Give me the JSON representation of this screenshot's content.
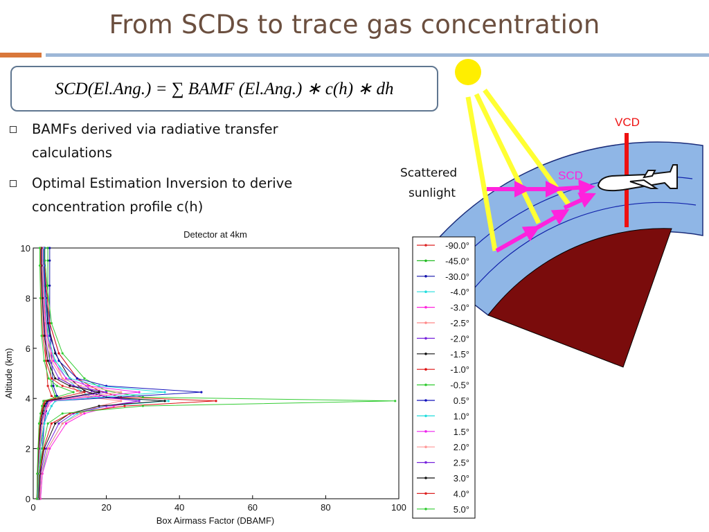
{
  "slide": {
    "title": "From SCDs to trace gas concentration",
    "formula": "SCD(El.Ang.) = ∑ BAMF (El.Ang.) ∗ c(h) ∗ dh",
    "bullets": [
      "BAMFs derived via radiative transfer calculations",
      "Optimal Estimation Inversion to derive concentration profile c(h)"
    ]
  },
  "diagram": {
    "vcd_label": "VCD",
    "scd_label": "SCD",
    "sunlight_label_line1": "Scattered",
    "sunlight_label_line2": "sunlight",
    "colors": {
      "sun": "#ffee00",
      "ray": "#ffff33",
      "arrow": "#ff22dd",
      "vcd": "#ee1111",
      "atmosphere": "#8fb6e6",
      "earth": "#7a0c0c"
    }
  },
  "chart_data": {
    "type": "line",
    "title": "Detector at 4km",
    "xlabel": "Box Airmass Factor (DBAMF)",
    "ylabel": "Altitude (km)",
    "xlim": [
      0,
      100
    ],
    "ylim": [
      0,
      10
    ],
    "x_ticks": [
      0,
      20,
      40,
      60,
      80,
      100
    ],
    "y_ticks": [
      0,
      2,
      4,
      6,
      8,
      10
    ],
    "grid": false,
    "legend_position": "right",
    "series": [
      {
        "name": "-90.0°",
        "color": "#dd2222",
        "x": [
          1,
          1.2,
          1.5,
          2,
          2.5,
          3,
          3.2,
          6,
          5,
          4,
          3.5,
          3.2,
          3,
          3,
          3
        ],
        "y": [
          0,
          1,
          2,
          3,
          3.5,
          3.8,
          3.9,
          4,
          4.1,
          4.5,
          5.5,
          7,
          8.5,
          9.5,
          10
        ]
      },
      {
        "name": "-45.0°",
        "color": "#22bb22",
        "x": [
          1.5,
          1.8,
          2,
          2.5,
          3,
          3.5,
          3.8,
          7,
          6,
          5,
          4.5,
          4,
          4,
          4,
          4
        ],
        "y": [
          0,
          1,
          2,
          3,
          3.5,
          3.8,
          3.9,
          4,
          4.1,
          4.5,
          5.5,
          7,
          8.5,
          9.5,
          10
        ]
      },
      {
        "name": "-30.0°",
        "color": "#1111aa",
        "x": [
          1.8,
          2,
          2.5,
          3,
          3.5,
          3.8,
          4,
          7.5,
          6.5,
          5.5,
          5,
          4.5,
          4.5,
          4.5,
          4.5
        ],
        "y": [
          0,
          1,
          2,
          3,
          3.5,
          3.8,
          3.9,
          4,
          4.1,
          4.5,
          5.5,
          7,
          8.5,
          9.5,
          10
        ]
      },
      {
        "name": "-4.0°",
        "color": "#22dddd",
        "x": [
          2,
          2.5,
          4,
          8,
          12,
          20,
          37,
          16,
          13,
          9,
          5,
          3.5,
          3,
          2.5,
          2.5
        ],
        "y": [
          0,
          1,
          2,
          3,
          3.4,
          3.7,
          3.9,
          4.05,
          4.3,
          4.8,
          5.8,
          7,
          8.5,
          9.5,
          10
        ]
      },
      {
        "name": "-3.0°",
        "color": "#ff22dd",
        "x": [
          2,
          2.5,
          4.5,
          9,
          14,
          22,
          29,
          18,
          14,
          10,
          6,
          4,
          3.2,
          2.8,
          2.8
        ],
        "y": [
          0,
          1,
          2,
          3,
          3.4,
          3.7,
          3.9,
          4.05,
          4.3,
          4.8,
          5.8,
          7,
          8.5,
          9.5,
          10
        ]
      },
      {
        "name": "-2.5°",
        "color": "#ff8888",
        "x": [
          1.8,
          2.2,
          4,
          8,
          13,
          18,
          24,
          15,
          12,
          8,
          5,
          3.5,
          3,
          2.6,
          2.6
        ],
        "y": [
          0,
          1,
          2,
          3,
          3.4,
          3.7,
          3.9,
          4.05,
          4.3,
          4.8,
          5.8,
          7,
          8.5,
          9.5,
          10
        ]
      },
      {
        "name": "-2.0°",
        "color": "#7722dd",
        "x": [
          1.6,
          2,
          3.5,
          7,
          11,
          20,
          29,
          20,
          16,
          12,
          7,
          4.5,
          3.5,
          3,
          3
        ],
        "y": [
          0,
          1,
          2,
          3,
          3.4,
          3.7,
          3.9,
          4.05,
          4.3,
          4.8,
          5.8,
          7,
          8.5,
          9.5,
          10
        ]
      },
      {
        "name": "-1.5°",
        "color": "#111111",
        "x": [
          1.5,
          1.8,
          3,
          6,
          10,
          18,
          36,
          20,
          14,
          10,
          6,
          4,
          3.2,
          2.8,
          2.8
        ],
        "y": [
          0,
          1,
          2,
          3,
          3.4,
          3.7,
          3.9,
          4.05,
          4.3,
          4.8,
          5.8,
          7,
          8.5,
          9.5,
          10
        ]
      },
      {
        "name": "-1.0°",
        "color": "#dd1111",
        "x": [
          1.4,
          1.7,
          2.8,
          5,
          10,
          25,
          50,
          24,
          18,
          12,
          7,
          4.5,
          3.5,
          3,
          3
        ],
        "y": [
          0,
          1,
          2,
          3,
          3.4,
          3.7,
          3.9,
          4.05,
          4.3,
          4.8,
          5.8,
          7,
          8.5,
          9.5,
          10
        ]
      },
      {
        "name": "-0.5°",
        "color": "#33cc33",
        "x": [
          1.3,
          1.6,
          2.5,
          4,
          8,
          30,
          99,
          30,
          20,
          14,
          8,
          5,
          3.8,
          3.2,
          3.2
        ],
        "y": [
          0,
          1,
          2,
          3,
          3.4,
          3.7,
          3.9,
          4.05,
          4.3,
          4.8,
          5.8,
          7,
          8.5,
          9.5,
          10
        ]
      },
      {
        "name": "0.5°",
        "color": "#1111bb",
        "x": [
          1.2,
          1.4,
          2,
          3,
          4,
          5,
          6,
          46,
          20,
          12,
          7,
          4.5,
          3.5,
          3,
          3
        ],
        "y": [
          0,
          1,
          2,
          3,
          3.4,
          3.7,
          3.9,
          4.25,
          4.5,
          4.8,
          5.5,
          6.5,
          8,
          9.3,
          10
        ]
      },
      {
        "name": "1.0°",
        "color": "#22dddd",
        "x": [
          1.2,
          1.4,
          2,
          3,
          4,
          5,
          6,
          36,
          18,
          10,
          6,
          4,
          3.2,
          2.8,
          2.8
        ],
        "y": [
          0,
          1,
          2,
          3,
          3.4,
          3.7,
          3.9,
          4.25,
          4.5,
          4.8,
          5.5,
          6.5,
          8,
          9.3,
          10
        ]
      },
      {
        "name": "1.5°",
        "color": "#ee22ee",
        "x": [
          1.1,
          1.3,
          1.8,
          2.5,
          3.2,
          4,
          5,
          29,
          15,
          9,
          5.5,
          3.8,
          3,
          2.6,
          2.6
        ],
        "y": [
          0,
          1,
          2,
          3,
          3.4,
          3.7,
          3.9,
          4.25,
          4.5,
          4.8,
          5.5,
          6.5,
          8,
          9.3,
          10
        ]
      },
      {
        "name": "2.0°",
        "color": "#ff9999",
        "x": [
          1.1,
          1.3,
          1.8,
          2.5,
          3,
          3.8,
          4.5,
          24,
          13,
          8,
          5,
          3.5,
          2.8,
          2.5,
          2.5
        ],
        "y": [
          0,
          1,
          2,
          3,
          3.4,
          3.7,
          3.9,
          4.25,
          4.5,
          4.8,
          5.5,
          6.5,
          8,
          9.3,
          10
        ]
      },
      {
        "name": "2.5°",
        "color": "#7722dd",
        "x": [
          1.1,
          1.2,
          1.6,
          2.2,
          2.8,
          3.5,
          4.2,
          20,
          11,
          7,
          4.5,
          3.2,
          2.6,
          2.3,
          2.3
        ],
        "y": [
          0,
          1,
          2,
          3,
          3.4,
          3.7,
          3.9,
          4.25,
          4.5,
          4.8,
          5.5,
          6.5,
          8,
          9.3,
          10
        ]
      },
      {
        "name": "3.0°",
        "color": "#111111",
        "x": [
          1,
          1.2,
          1.5,
          2,
          2.5,
          3,
          3.8,
          18,
          10,
          6,
          4,
          3,
          2.5,
          2.2,
          2.2
        ],
        "y": [
          0,
          1,
          2,
          3,
          3.4,
          3.7,
          3.9,
          4.25,
          4.5,
          4.8,
          5.5,
          6.5,
          8,
          9.3,
          10
        ]
      },
      {
        "name": "4.0°",
        "color": "#dd2222",
        "x": [
          1,
          1.1,
          1.4,
          1.8,
          2.2,
          2.6,
          3.2,
          14,
          8,
          5,
          3.5,
          2.6,
          2.2,
          2,
          2
        ],
        "y": [
          0,
          1,
          2,
          3,
          3.4,
          3.7,
          3.9,
          4.25,
          4.5,
          4.8,
          5.5,
          6.5,
          8,
          9.3,
          10
        ]
      },
      {
        "name": "5.0°",
        "color": "#33cc33",
        "x": [
          1,
          1.1,
          1.3,
          1.6,
          2,
          2.4,
          2.8,
          11,
          6.5,
          4.2,
          3,
          2.3,
          2,
          1.8,
          1.8
        ],
        "y": [
          0,
          1,
          2,
          3,
          3.4,
          3.7,
          3.9,
          4.25,
          4.5,
          4.8,
          5.5,
          6.5,
          8,
          9.3,
          10
        ]
      }
    ]
  }
}
